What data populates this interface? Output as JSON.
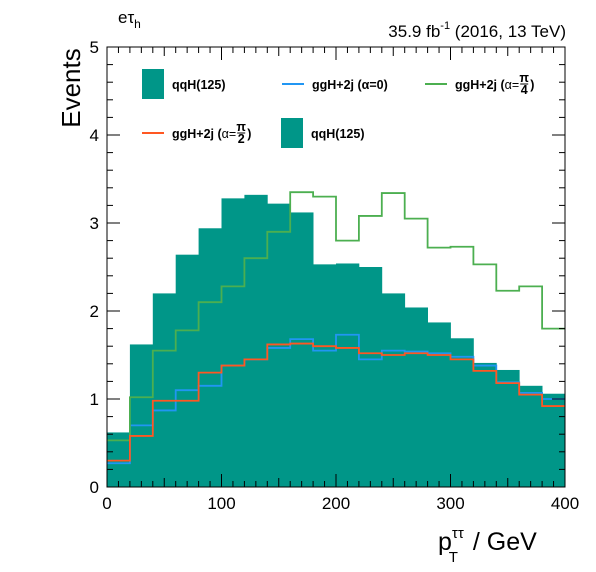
{
  "chart_data": {
    "type": "bar",
    "channel_label": "eτ",
    "channel_label_sub": "h",
    "lumi_label": "35.9 fb",
    "lumi_label_sup": "-1",
    "lumi_label_rest": " (2016, 13 TeV)",
    "ylabel": "Events",
    "xlabel": "p",
    "xlabel_sup": "ττ",
    "xlabel_sub": "T",
    "xlabel_unit": " / GeV",
    "xlim": [
      0,
      400
    ],
    "ylim": [
      0,
      5
    ],
    "x_ticks": [
      "0",
      "100",
      "200",
      "300",
      "400"
    ],
    "y_ticks": [
      "0",
      "1",
      "2",
      "3",
      "4",
      "5"
    ],
    "bin_edges": [
      0,
      20,
      40,
      60,
      80,
      100,
      120,
      140,
      160,
      180,
      200,
      220,
      240,
      260,
      280,
      300,
      320,
      340,
      360,
      380,
      400
    ],
    "series": [
      {
        "name": "qqH(125)",
        "style": "filled",
        "color": "#009688",
        "values": [
          0.62,
          1.62,
          2.2,
          2.64,
          2.94,
          3.28,
          3.32,
          3.22,
          3.12,
          2.53,
          2.54,
          2.5,
          2.2,
          2.04,
          1.87,
          1.69,
          1.41,
          1.33,
          1.15,
          1.06
        ]
      },
      {
        "name": "ggH+2j (α=0)",
        "style": "line",
        "color": "#2196f3",
        "values": [
          0.27,
          0.7,
          0.87,
          1.1,
          1.15,
          1.38,
          1.45,
          1.58,
          1.68,
          1.55,
          1.73,
          1.45,
          1.55,
          1.54,
          1.52,
          1.48,
          1.38,
          1.19,
          1.07,
          1.0
        ]
      },
      {
        "name": "ggH+2j (α=π/4)",
        "style": "line",
        "color": "#4caf50",
        "values": [
          0.53,
          1.02,
          1.55,
          1.78,
          2.1,
          2.28,
          2.6,
          2.9,
          3.35,
          3.3,
          2.8,
          3.08,
          3.34,
          3.05,
          2.72,
          2.73,
          2.53,
          2.23,
          2.28,
          1.8
        ]
      },
      {
        "name": "ggH+2j (α=π/2)",
        "style": "line",
        "color": "#ff5722",
        "values": [
          0.3,
          0.58,
          0.98,
          0.98,
          1.3,
          1.38,
          1.45,
          1.62,
          1.63,
          1.6,
          1.58,
          1.52,
          1.5,
          1.52,
          1.5,
          1.45,
          1.32,
          1.18,
          1.05,
          0.92
        ]
      }
    ],
    "legend": {
      "placement": "top",
      "entries": [
        {
          "label": "qqH(125)",
          "style": "filled",
          "color": "#009688"
        },
        {
          "label": "ggH+2j (",
          "alpha": "α=",
          "frac_num": "π",
          "frac_den": "4",
          "tail": ")",
          "style": "line",
          "color": "#4caf50",
          "kind": "frac"
        },
        {
          "label": "ggH+2j (α=0)",
          "style": "line",
          "color": "#2196f3",
          "kind": "plain"
        },
        {
          "label": "ggH+2j (",
          "alpha": "α=",
          "frac_num": "π",
          "frac_den": "2",
          "tail": ")",
          "style": "line",
          "color": "#ff5722",
          "kind": "frac"
        },
        {
          "label": "qqH(125)",
          "style": "filled",
          "color": "#009688"
        }
      ]
    }
  }
}
